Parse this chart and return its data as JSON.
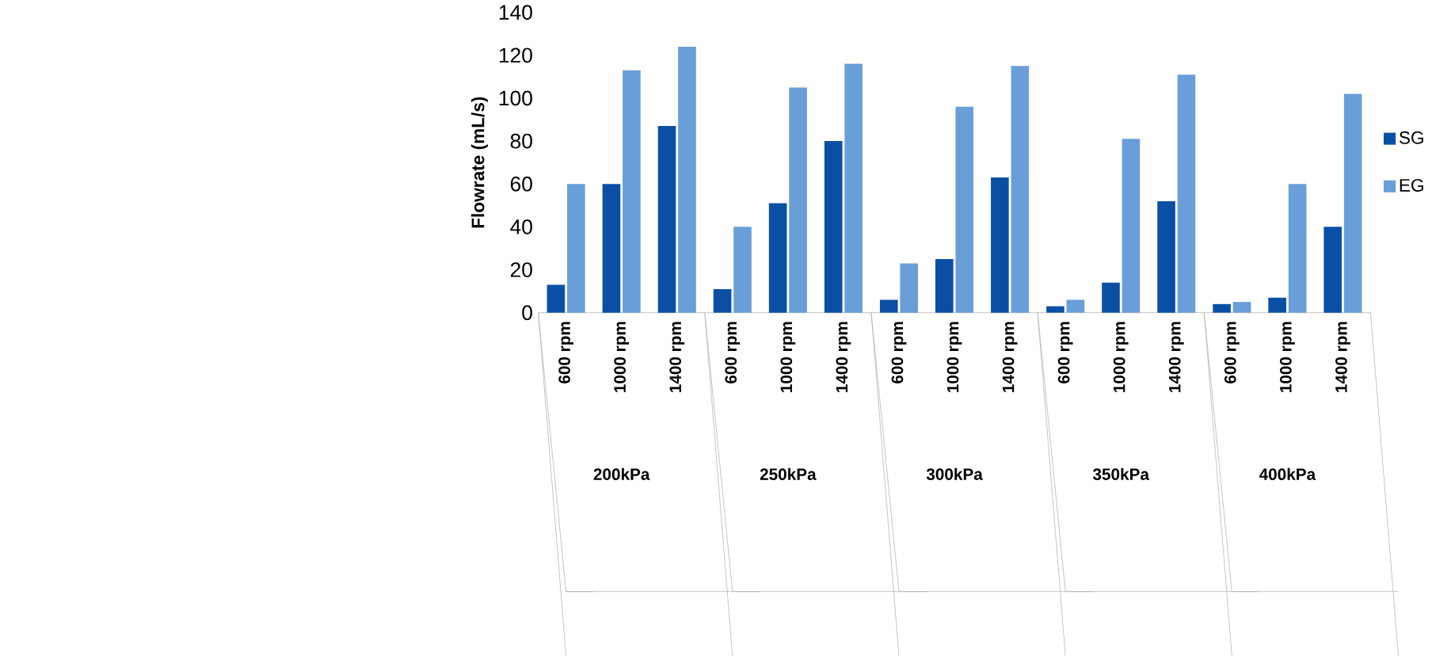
{
  "chart_data": {
    "type": "bar",
    "ylabel": "Flowrate (mL/s)",
    "categories": [
      "600 rpm",
      "1000 rpm",
      "1400 rpm",
      "600 rpm",
      "1000 rpm",
      "1400 rpm",
      "600 rpm",
      "1000 rpm",
      "1400 rpm",
      "600 rpm",
      "1000 rpm",
      "1400 rpm",
      "600 rpm",
      "1000 rpm",
      "1400 rpm"
    ],
    "annotations": [
      "200kPa",
      "250kPa",
      "300kPa",
      "350kPa",
      "400kPa"
    ],
    "series": [
      {
        "name": "SG",
        "color": "#0b4fa5",
        "values": [
          13,
          60,
          87,
          11,
          51,
          80,
          6,
          25,
          63,
          3,
          14,
          52,
          4,
          7,
          40
        ]
      },
      {
        "name": "EG",
        "color": "#6a9ed8",
        "values": [
          60,
          113,
          124,
          40,
          105,
          116,
          23,
          96,
          115,
          6,
          81,
          111,
          5,
          60,
          102
        ]
      }
    ],
    "ylim": [
      0,
      140
    ],
    "yticks": [
      0,
      20,
      40,
      60,
      80,
      100,
      120,
      140
    ],
    "grid": false,
    "legend": "right"
  }
}
